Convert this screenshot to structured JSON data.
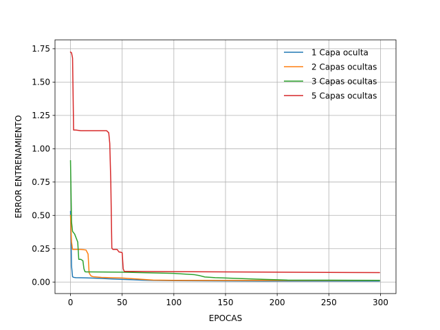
{
  "chart_data": {
    "type": "line",
    "title": "",
    "xlabel": "EPOCAS",
    "ylabel": "ERROR ENTRENAMIENTO",
    "xlim": [
      -15,
      315
    ],
    "ylim": [
      -0.0865,
      1.8165
    ],
    "xticks": [
      0,
      50,
      100,
      150,
      200,
      250,
      300
    ],
    "xtick_labels": [
      "0",
      "50",
      "100",
      "150",
      "200",
      "250",
      "300"
    ],
    "yticks": [
      0.0,
      0.25,
      0.5,
      0.75,
      1.0,
      1.25,
      1.5,
      1.75
    ],
    "ytick_labels": [
      "0.00",
      "0.25",
      "0.50",
      "0.75",
      "1.00",
      "1.25",
      "1.50",
      "1.75"
    ],
    "grid": true,
    "legend_position": "top-right",
    "series": [
      {
        "name": "1 Capa oculta",
        "color": "#1f77b4",
        "x": [
          0,
          1,
          2,
          3,
          5,
          10,
          20,
          30,
          40,
          50,
          60,
          70,
          80,
          100,
          150,
          200,
          250,
          299
        ],
        "y": [
          0.53,
          0.12,
          0.04,
          0.035,
          0.033,
          0.032,
          0.03,
          0.027,
          0.023,
          0.02,
          0.017,
          0.014,
          0.012,
          0.01,
          0.008,
          0.007,
          0.007,
          0.007
        ]
      },
      {
        "name": "2 Capas ocultas",
        "color": "#ff7f0e",
        "x": [
          0,
          1,
          2,
          5,
          10,
          15,
          17,
          18,
          19,
          20,
          22,
          25,
          30,
          50,
          60,
          70,
          80,
          100,
          150,
          200,
          250,
          299
        ],
        "y": [
          0.5,
          0.3,
          0.245,
          0.245,
          0.245,
          0.24,
          0.21,
          0.07,
          0.055,
          0.045,
          0.04,
          0.038,
          0.035,
          0.03,
          0.025,
          0.02,
          0.015,
          0.013,
          0.012,
          0.012,
          0.012,
          0.012
        ]
      },
      {
        "name": "3 Capas ocultas",
        "color": "#2ca02c",
        "x": [
          0,
          1,
          2,
          4,
          5,
          6,
          7,
          8,
          10,
          12,
          13,
          14,
          15,
          20,
          50,
          70,
          100,
          120,
          125,
          130,
          140,
          150,
          180,
          200,
          210,
          250,
          299
        ],
        "y": [
          0.91,
          0.45,
          0.38,
          0.36,
          0.34,
          0.32,
          0.3,
          0.17,
          0.17,
          0.16,
          0.1,
          0.078,
          0.076,
          0.076,
          0.074,
          0.07,
          0.065,
          0.055,
          0.048,
          0.038,
          0.033,
          0.03,
          0.022,
          0.017,
          0.015,
          0.014,
          0.013
        ]
      },
      {
        "name": "5 Capas ocultas",
        "color": "#d62728",
        "x": [
          0,
          1,
          2,
          3,
          5,
          10,
          20,
          30,
          35,
          37,
          38,
          39,
          40,
          41,
          42,
          45,
          47,
          48,
          50,
          51,
          52,
          55,
          60,
          100,
          150,
          200,
          250,
          299
        ],
        "y": [
          1.725,
          1.72,
          1.68,
          1.14,
          1.14,
          1.135,
          1.135,
          1.135,
          1.135,
          1.12,
          1.04,
          0.75,
          0.255,
          0.245,
          0.245,
          0.245,
          0.225,
          0.225,
          0.22,
          0.1,
          0.08,
          0.08,
          0.08,
          0.078,
          0.076,
          0.074,
          0.072,
          0.071
        ]
      }
    ]
  }
}
